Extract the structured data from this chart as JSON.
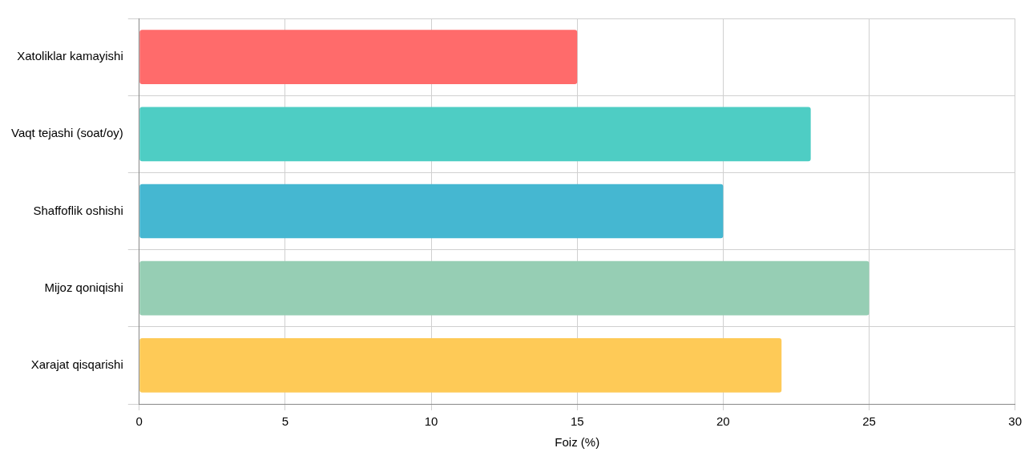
{
  "chart_data": {
    "type": "bar",
    "orientation": "horizontal",
    "xlabel": "Foiz (%)",
    "categories": [
      "Xatoliklar kamayishi",
      "Vaqt tejashi (soat/oy)",
      "Shaffoflik oshishi",
      "Mijoz qoniqishi",
      "Xarajat qisqarishi"
    ],
    "values": [
      15,
      23,
      20,
      25,
      22
    ],
    "colors": [
      "#ff6b6b",
      "#4ecdc4",
      "#45b7d1",
      "#96ceb4",
      "#feca57"
    ],
    "xlim": [
      0,
      30
    ],
    "xticks": [
      0,
      5,
      10,
      15,
      20,
      25,
      30
    ],
    "grid": true
  }
}
